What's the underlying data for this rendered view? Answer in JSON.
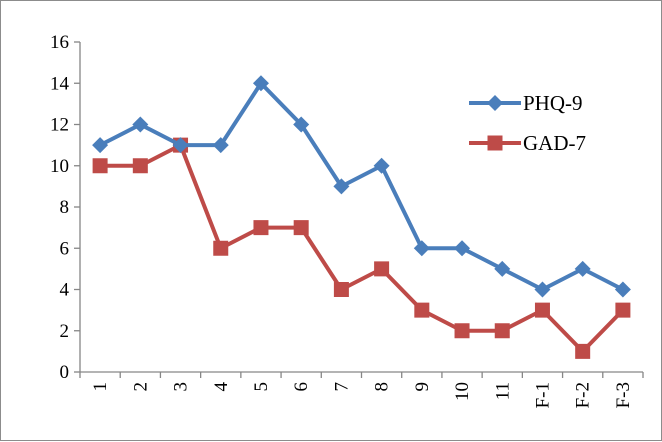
{
  "chart_data": {
    "type": "line",
    "categories": [
      "1",
      "2",
      "3",
      "4",
      "5",
      "6",
      "7",
      "8",
      "9",
      "10",
      "11",
      "F-1",
      "F-2",
      "F-3"
    ],
    "series": [
      {
        "name": "PHQ-9",
        "values": [
          11,
          12,
          11,
          11,
          14,
          12,
          9,
          10,
          6,
          6,
          5,
          4,
          5,
          4
        ],
        "color": "#4a7ebb",
        "marker": "diamond"
      },
      {
        "name": "GAD-7",
        "values": [
          10,
          10,
          11,
          6,
          7,
          7,
          4,
          5,
          3,
          2,
          2,
          3,
          1,
          3
        ],
        "color": "#be4b48",
        "marker": "square"
      }
    ],
    "title": "",
    "xlabel": "",
    "ylabel": "",
    "ylim": [
      0,
      16
    ],
    "yticks": [
      0,
      2,
      4,
      6,
      8,
      10,
      12,
      14,
      16
    ],
    "grid": false,
    "legend_position": "top-right"
  }
}
